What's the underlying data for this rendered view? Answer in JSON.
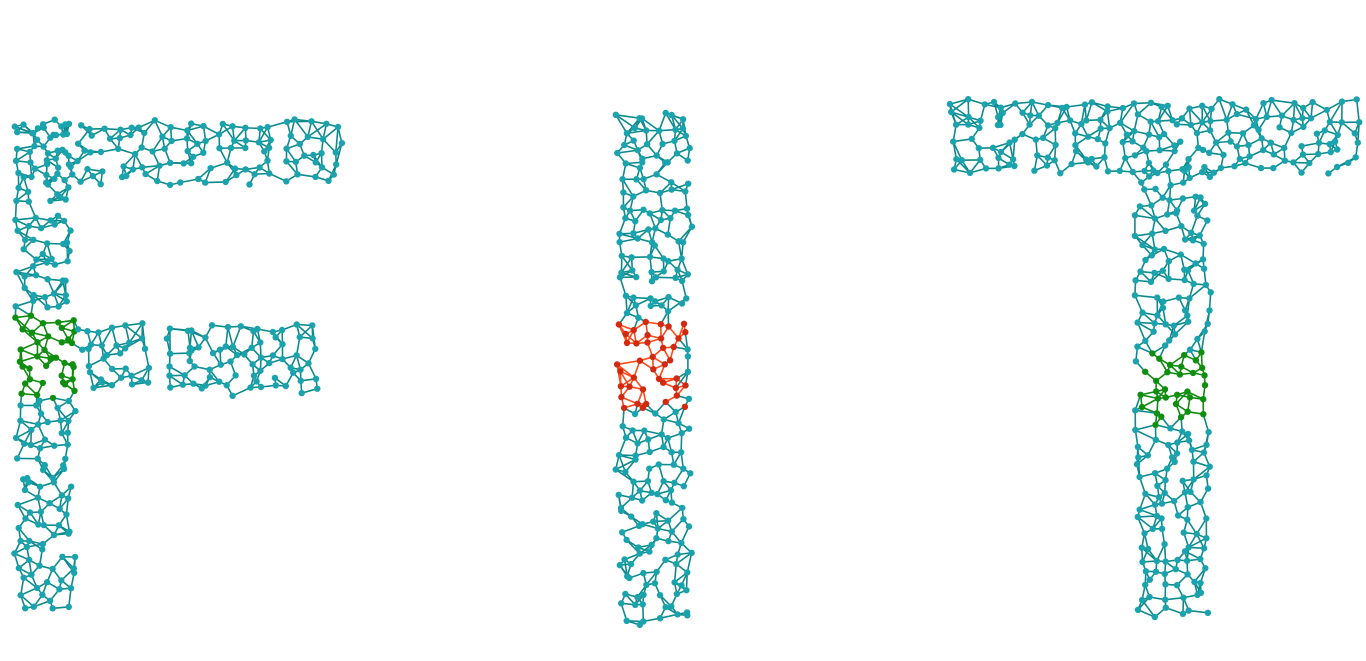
{
  "diagram": {
    "type": "network-graph",
    "description_of_structure": "",
    "colors": {
      "background": "#ffffff",
      "base_edge": "#0e8a8e",
      "base_node": "#1aa3ad",
      "highlight_green": "#138a13",
      "highlight_green_node": "#0f8f0f",
      "highlight_red": "#ff4a1a",
      "highlight_red_node": "#d22a10"
    },
    "regions": [
      {
        "name": "letter-f",
        "kind": "letter",
        "letter": "F"
      },
      {
        "name": "letter-i",
        "kind": "letter",
        "letter": "I"
      },
      {
        "name": "letter-t",
        "kind": "letter",
        "letter": "T"
      },
      {
        "name": "cluster-f-green",
        "kind": "highlight",
        "color": "green"
      },
      {
        "name": "cluster-i-red",
        "kind": "highlight",
        "color": "red"
      },
      {
        "name": "cluster-t-green",
        "kind": "highlight",
        "color": "green"
      }
    ]
  }
}
